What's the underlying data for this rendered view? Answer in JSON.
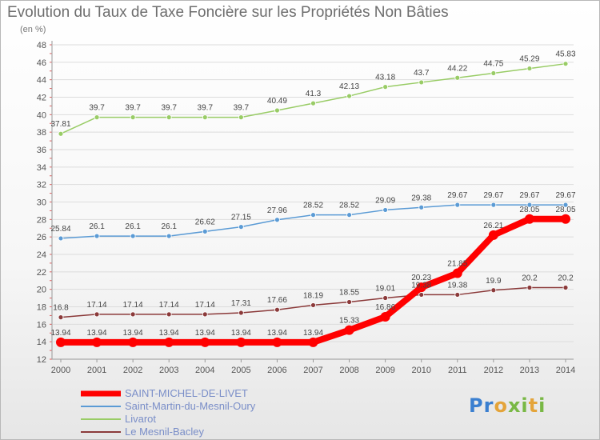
{
  "title": "Evolution du Taux de Taxe Foncière sur les Propriétés Non Bâties",
  "unit_label": "(en %)",
  "logo": {
    "text": "Proxiti"
  },
  "chart_data": {
    "type": "line",
    "title": "Evolution du Taux de Taxe Foncière sur les Propriétés Non Bâties",
    "ylabel": "(en %)",
    "xlabel": "",
    "ylim": [
      12,
      48
    ],
    "ytick_step": 2,
    "grid": true,
    "legend_position": "bottom-left",
    "x": [
      "2000",
      "2001",
      "2002",
      "2003",
      "2004",
      "2005",
      "2006",
      "2007",
      "2008",
      "2009",
      "2010",
      "2011",
      "2012",
      "2013",
      "2014"
    ],
    "series": [
      {
        "name": "SAINT-MICHEL-DE-LIVET",
        "color": "#ff0000",
        "values": [
          13.94,
          13.94,
          13.94,
          13.94,
          13.94,
          13.94,
          13.94,
          13.94,
          15.33,
          16.86,
          20.23,
          21.85,
          26.21,
          28.05,
          28.05
        ],
        "labels": [
          "13.94",
          "13.94",
          "13.94",
          "13.94",
          "13.94",
          "13.94",
          "13.94",
          "13.94",
          "15.33",
          "16.86",
          "20.23",
          "21.85",
          "26.21",
          "28.05",
          "28.05"
        ]
      },
      {
        "name": "Saint-Martin-du-Mesnil-Oury",
        "color": "#5b9bd5",
        "values": [
          25.84,
          26.1,
          26.1,
          26.1,
          26.62,
          27.15,
          27.96,
          28.52,
          28.52,
          29.09,
          29.38,
          29.67,
          29.67,
          29.67,
          29.67
        ],
        "labels": [
          "25.84",
          "26.1",
          "26.1",
          "26.1",
          "26.62",
          "27.15",
          "27.96",
          "28.52",
          "28.52",
          "29.09",
          "29.38",
          "29.67",
          "29.67",
          "29.67",
          "29.67"
        ]
      },
      {
        "name": "Livarot",
        "color": "#99cc66",
        "values": [
          37.81,
          39.7,
          39.7,
          39.7,
          39.7,
          39.7,
          40.49,
          41.3,
          42.13,
          43.18,
          43.7,
          44.22,
          44.75,
          45.29,
          45.83
        ],
        "labels": [
          "37.81",
          "39.7",
          "39.7",
          "39.7",
          "39.7",
          "39.7",
          "40.49",
          "41.3",
          "42.13",
          "43.18",
          "43.7",
          "44.22",
          "44.75",
          "45.29",
          "45.83"
        ]
      },
      {
        "name": "Le Mesnil-Bacley",
        "color": "#8b3a3a",
        "values": [
          16.8,
          17.14,
          17.14,
          17.14,
          17.14,
          17.31,
          17.66,
          18.19,
          18.55,
          19.01,
          19.38,
          19.38,
          19.9,
          20.2,
          20.2
        ],
        "labels": [
          "16.8",
          "17.14",
          "17.14",
          "17.14",
          "17.14",
          "17.31",
          "17.66",
          "18.19",
          "18.55",
          "19.01",
          "19.38",
          "19.38",
          "19.9",
          "20.2",
          "20.2"
        ]
      }
    ]
  }
}
